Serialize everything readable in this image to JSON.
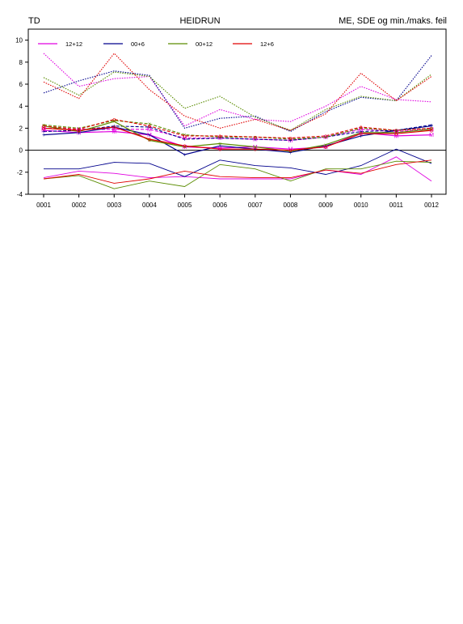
{
  "header": {
    "left": "TD",
    "center": "HEIDRUN",
    "right": "ME, SDE og min./maks. feil"
  },
  "colors": {
    "12+12": "#e000e0",
    "00+6": "#00008c",
    "00+12": "#5a8c00",
    "12+6": "#e00000"
  },
  "chart_data": {
    "type": "line",
    "title": "HEIDRUN",
    "xlabel": "",
    "ylabel": "",
    "categories": [
      "0001",
      "0002",
      "0003",
      "0004",
      "0005",
      "0006",
      "0007",
      "0008",
      "0009",
      "0010",
      "0011",
      "0012"
    ],
    "ylim": [
      -4,
      11
    ],
    "yticks": [
      -4,
      -2,
      0,
      2,
      4,
      6,
      8,
      10
    ],
    "legend_position": "top-left",
    "grid": false,
    "series": [
      {
        "name": "12+12",
        "marker": "M",
        "me": [
          1.8,
          1.6,
          1.7,
          1.4,
          0.3,
          0.2,
          0.3,
          0.1,
          0.3,
          1.6,
          1.3,
          1.4
        ],
        "sde": [
          2.0,
          1.9,
          1.9,
          1.9,
          1.1,
          1.1,
          1.0,
          0.9,
          1.2,
          1.9,
          1.7,
          1.9
        ],
        "max": [
          8.8,
          5.8,
          6.5,
          6.7,
          2.2,
          3.7,
          2.8,
          2.6,
          4.0,
          5.8,
          4.6,
          4.4
        ],
        "min": [
          -2.5,
          -1.9,
          -2.1,
          -2.5,
          -2.4,
          -2.6,
          -2.6,
          -2.6,
          -1.8,
          -2.2,
          -0.6,
          -2.8
        ]
      },
      {
        "name": "00+6",
        "marker": "+",
        "me": [
          1.4,
          1.6,
          2.1,
          1.4,
          -0.4,
          0.4,
          0.1,
          -0.2,
          0.4,
          1.3,
          1.8,
          2.2
        ],
        "sde": [
          1.7,
          1.8,
          2.2,
          2.1,
          1.0,
          1.1,
          1.0,
          0.9,
          1.2,
          1.7,
          1.8,
          2.3
        ],
        "max": [
          5.2,
          6.3,
          7.2,
          6.8,
          2.0,
          2.9,
          3.1,
          1.7,
          3.5,
          4.8,
          4.5,
          8.6
        ],
        "min": [
          -1.7,
          -1.7,
          -1.1,
          -1.2,
          -2.4,
          -0.9,
          -1.4,
          -1.6,
          -2.2,
          -1.4,
          0.1,
          -1.2
        ]
      },
      {
        "name": "00+12",
        "marker": "×",
        "me": [
          2.2,
          1.7,
          2.6,
          0.9,
          0.3,
          0.6,
          0.3,
          -0.1,
          0.5,
          1.6,
          1.6,
          1.9
        ],
        "sde": [
          2.3,
          2.0,
          2.7,
          2.4,
          1.4,
          1.2,
          1.2,
          1.0,
          1.2,
          2.0,
          1.8,
          2.0
        ],
        "max": [
          6.6,
          5.0,
          7.1,
          6.7,
          3.8,
          4.9,
          3.0,
          1.8,
          3.7,
          4.9,
          4.5,
          6.9
        ],
        "min": [
          -2.6,
          -2.3,
          -3.5,
          -2.8,
          -3.3,
          -1.3,
          -1.7,
          -2.8,
          -1.7,
          -1.7,
          -1.0,
          -1.1
        ]
      },
      {
        "name": "12+6",
        "marker": "o",
        "me": [
          2.0,
          1.8,
          2.1,
          1.0,
          0.4,
          0.1,
          0.1,
          0.0,
          0.3,
          1.5,
          1.5,
          1.8
        ],
        "sde": [
          2.2,
          1.9,
          2.8,
          2.2,
          1.3,
          1.3,
          1.2,
          1.1,
          1.3,
          2.1,
          1.8,
          2.0
        ],
        "max": [
          6.2,
          4.7,
          8.8,
          5.5,
          3.1,
          2.0,
          2.8,
          1.8,
          3.3,
          7.0,
          4.5,
          6.7
        ],
        "min": [
          -2.6,
          -2.2,
          -3.0,
          -2.6,
          -1.9,
          -2.4,
          -2.5,
          -2.5,
          -1.8,
          -2.1,
          -1.3,
          -0.9
        ]
      }
    ]
  }
}
